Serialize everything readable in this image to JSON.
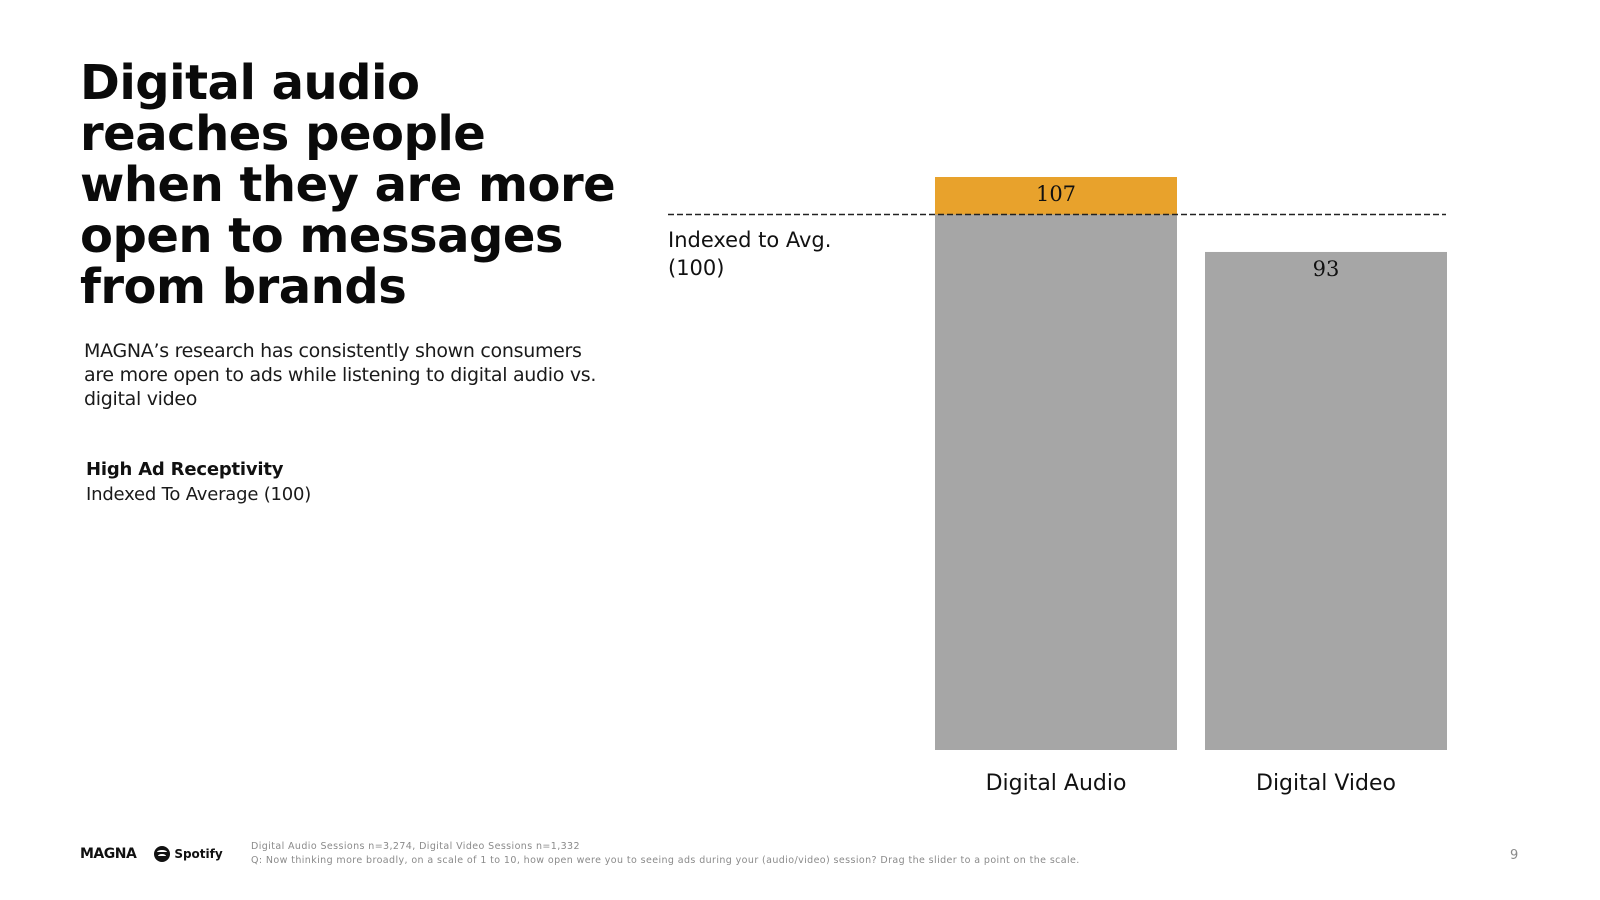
{
  "slide": {
    "headline": "Digital audio reaches people when they are more open to messages from brands",
    "subhead": "MAGNA’s research has consistently shown consumers are more open to ads while listening to digital audio vs. digital video",
    "metric_title": "High Ad Receptivity",
    "metric_subtitle": "Indexed To Average (100)",
    "page_number": "9"
  },
  "footer": {
    "logo_magna": "MAGNA",
    "logo_spotify": "Spotify",
    "footnote_line1": "Digital Audio Sessions n=3,274, Digital Video Sessions n=1,332",
    "footnote_line2": "Q: Now thinking more broadly, on a scale of 1 to 10, how open were you to seeing ads during your (audio/video) session? Drag the slider to a point on the scale."
  },
  "chart_data": {
    "type": "bar",
    "categories": [
      "Digital Audio",
      "Digital Video"
    ],
    "values": [
      107,
      93
    ],
    "value_labels": [
      "107",
      "93"
    ],
    "title": "",
    "xlabel": "",
    "ylabel": "",
    "ylim": [
      0,
      107
    ],
    "reference_line": {
      "value": 100,
      "style": "dashed",
      "label": "Indexed to Avg. (100)"
    },
    "colors": {
      "bar": "#a6a6a6",
      "above_average": "#e8a22c",
      "reference_line": "#222222"
    },
    "grid": false,
    "legend": "none"
  }
}
